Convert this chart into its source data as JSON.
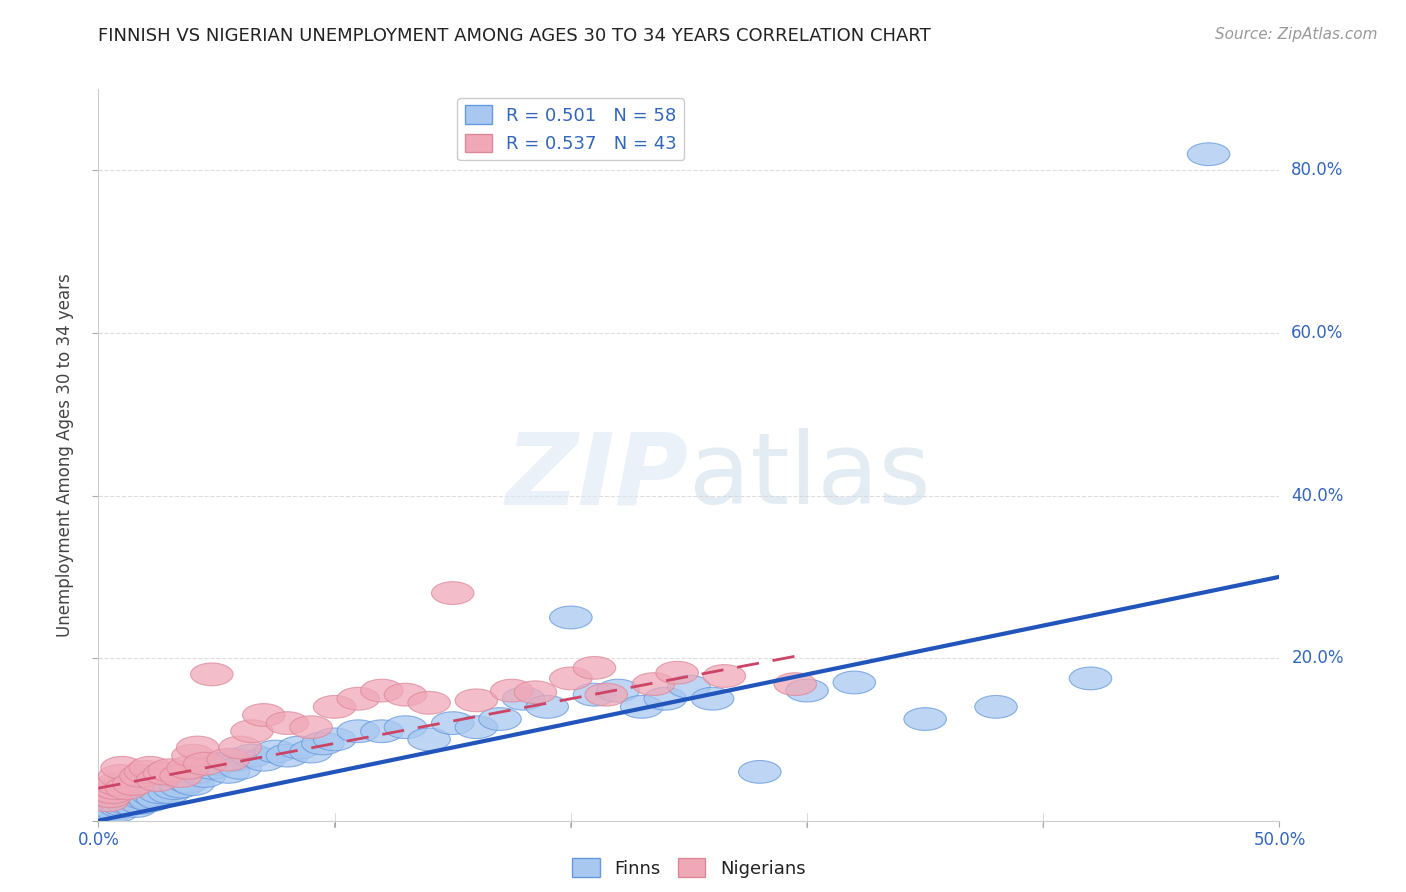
{
  "title": "FINNISH VS NIGERIAN UNEMPLOYMENT AMONG AGES 30 TO 34 YEARS CORRELATION CHART",
  "source": "Source: ZipAtlas.com",
  "ylabel": "Unemployment Among Ages 30 to 34 years",
  "xlim": [
    0,
    0.5
  ],
  "ylim": [
    0,
    0.9
  ],
  "xticks_show": [
    0.0,
    0.5
  ],
  "xticklabels_show": [
    "0.0%",
    "50.0%"
  ],
  "xticks_minor": [
    0.1,
    0.2,
    0.3,
    0.4
  ],
  "yticks": [
    0.0,
    0.2,
    0.4,
    0.6,
    0.8
  ],
  "yticklabels": [
    "",
    "20.0%",
    "40.0%",
    "60.0%",
    "80.0%"
  ],
  "finn_color": "#a8c8f0",
  "nigerian_color": "#f0a8b8",
  "finn_edge_color": "#6699dd",
  "nigerian_edge_color": "#dd8899",
  "finn_line_color": "#2255bb",
  "nigerian_line_color": "#cc4466",
  "finn_R": 0.501,
  "finn_N": 58,
  "nigerian_R": 0.537,
  "nigerian_N": 43,
  "background_color": "#ffffff",
  "grid_color": "#dddddd",
  "finn_x": [
    0.005,
    0.007,
    0.008,
    0.009,
    0.01,
    0.012,
    0.015,
    0.016,
    0.018,
    0.019,
    0.02,
    0.022,
    0.023,
    0.025,
    0.026,
    0.03,
    0.032,
    0.035,
    0.038,
    0.04,
    0.042,
    0.045,
    0.048,
    0.05,
    0.055,
    0.058,
    0.06,
    0.065,
    0.07,
    0.075,
    0.08,
    0.085,
    0.09,
    0.095,
    0.1,
    0.11,
    0.12,
    0.13,
    0.14,
    0.15,
    0.16,
    0.17,
    0.18,
    0.19,
    0.2,
    0.21,
    0.22,
    0.23,
    0.24,
    0.25,
    0.26,
    0.28,
    0.3,
    0.32,
    0.35,
    0.38,
    0.42,
    0.47
  ],
  "finn_y": [
    0.01,
    0.015,
    0.012,
    0.018,
    0.02,
    0.022,
    0.025,
    0.018,
    0.022,
    0.028,
    0.03,
    0.025,
    0.032,
    0.028,
    0.035,
    0.035,
    0.04,
    0.042,
    0.048,
    0.045,
    0.06,
    0.055,
    0.065,
    0.07,
    0.06,
    0.075,
    0.065,
    0.08,
    0.075,
    0.085,
    0.08,
    0.09,
    0.085,
    0.095,
    0.1,
    0.11,
    0.11,
    0.115,
    0.1,
    0.12,
    0.115,
    0.125,
    0.15,
    0.14,
    0.25,
    0.155,
    0.16,
    0.14,
    0.15,
    0.165,
    0.15,
    0.06,
    0.16,
    0.17,
    0.125,
    0.14,
    0.175,
    0.82
  ],
  "nigerian_x": [
    0.004,
    0.005,
    0.006,
    0.007,
    0.008,
    0.009,
    0.01,
    0.012,
    0.015,
    0.018,
    0.02,
    0.022,
    0.025,
    0.028,
    0.03,
    0.035,
    0.038,
    0.04,
    0.042,
    0.045,
    0.048,
    0.055,
    0.06,
    0.065,
    0.07,
    0.08,
    0.09,
    0.1,
    0.11,
    0.12,
    0.13,
    0.14,
    0.15,
    0.16,
    0.175,
    0.185,
    0.2,
    0.21,
    0.215,
    0.235,
    0.245,
    0.265,
    0.295
  ],
  "nigerian_y": [
    0.025,
    0.03,
    0.035,
    0.04,
    0.045,
    0.055,
    0.065,
    0.04,
    0.045,
    0.055,
    0.06,
    0.065,
    0.05,
    0.058,
    0.062,
    0.055,
    0.065,
    0.08,
    0.09,
    0.07,
    0.18,
    0.075,
    0.09,
    0.11,
    0.13,
    0.12,
    0.115,
    0.14,
    0.15,
    0.16,
    0.155,
    0.145,
    0.28,
    0.148,
    0.16,
    0.158,
    0.175,
    0.188,
    0.155,
    0.168,
    0.182,
    0.178,
    0.168
  ],
  "finn_line_x": [
    0.0,
    0.5
  ],
  "finn_line_y": [
    0.0,
    0.3
  ],
  "nigerian_line_x": [
    0.0,
    0.3
  ],
  "nigerian_line_y": [
    0.04,
    0.205
  ]
}
